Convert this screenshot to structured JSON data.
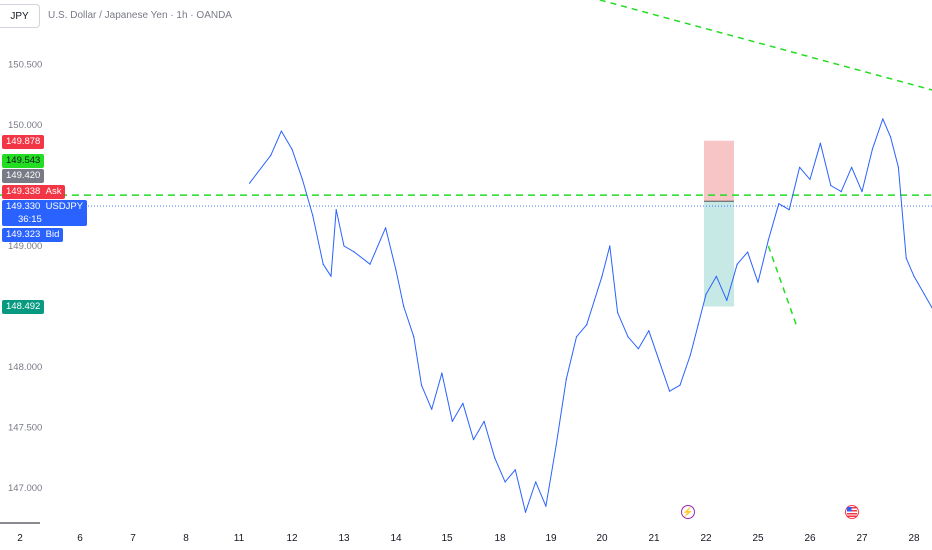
{
  "header": {
    "symbol": "JPY",
    "title": "U.S. Dollar / Japanese Yen · 1h · OANDA"
  },
  "colors": {
    "line": "#2962ff",
    "trend_green": "#22dd22",
    "loss_zone": "#f7c5c5",
    "profit_zone": "#c7e9e6",
    "ask_red": "#f23645",
    "bid_blue": "#2962ff"
  },
  "price_tags": {
    "t1": "149.878",
    "t2": "149.543",
    "t3": "149.420",
    "ask": "149.338",
    "ask_label": "Ask",
    "last": "149.330",
    "last_label": "USDJPY",
    "countdown": "36:15",
    "bid": "149.323",
    "bid_label": "Bid",
    "stop": "148.492"
  },
  "events": {
    "icon1": "lightning-icon",
    "icon2": "us-flag-icon"
  },
  "chart_data": {
    "type": "line",
    "title": "U.S. Dollar / Japanese Yen · 1h · OANDA",
    "y_ticks": [
      "150.500",
      "150.000",
      "149.000",
      "148.000",
      "147.500",
      "147.000"
    ],
    "x_ticks": [
      "2",
      "6",
      "7",
      "8",
      "11",
      "12",
      "13",
      "14",
      "15",
      "18",
      "19",
      "20",
      "21",
      "22",
      "25",
      "26",
      "27",
      "28"
    ],
    "ylim": [
      146.75,
      150.75
    ],
    "series": [
      {
        "name": "USDJPY",
        "points": [
          [
            4.2,
            149.52
          ],
          [
            4.6,
            149.75
          ],
          [
            4.8,
            149.95
          ],
          [
            5.0,
            149.8
          ],
          [
            5.2,
            149.55
          ],
          [
            5.4,
            149.25
          ],
          [
            5.6,
            148.85
          ],
          [
            5.75,
            148.75
          ],
          [
            5.85,
            149.3
          ],
          [
            6.0,
            149.0
          ],
          [
            6.2,
            148.95
          ],
          [
            6.5,
            148.85
          ],
          [
            6.8,
            149.15
          ],
          [
            7.0,
            148.8
          ],
          [
            7.15,
            148.5
          ],
          [
            7.35,
            148.25
          ],
          [
            7.5,
            147.85
          ],
          [
            7.7,
            147.65
          ],
          [
            7.9,
            147.95
          ],
          [
            8.1,
            147.55
          ],
          [
            8.3,
            147.7
          ],
          [
            8.5,
            147.4
          ],
          [
            8.7,
            147.55
          ],
          [
            8.9,
            147.25
          ],
          [
            9.1,
            147.05
          ],
          [
            9.3,
            147.15
          ],
          [
            9.5,
            146.8
          ],
          [
            9.7,
            147.05
          ],
          [
            9.9,
            146.85
          ],
          [
            10.1,
            147.35
          ],
          [
            10.3,
            147.9
          ],
          [
            10.5,
            148.25
          ],
          [
            10.7,
            148.35
          ],
          [
            10.85,
            148.55
          ],
          [
            11.0,
            148.75
          ],
          [
            11.15,
            149.0
          ],
          [
            11.3,
            148.45
          ],
          [
            11.5,
            148.25
          ],
          [
            11.7,
            148.15
          ],
          [
            11.9,
            148.3
          ],
          [
            12.1,
            148.05
          ],
          [
            12.3,
            147.8
          ],
          [
            12.5,
            147.85
          ],
          [
            12.7,
            148.1
          ],
          [
            12.85,
            148.35
          ],
          [
            13.0,
            148.6
          ],
          [
            13.2,
            148.75
          ],
          [
            13.4,
            148.55
          ],
          [
            13.6,
            148.85
          ],
          [
            13.8,
            148.95
          ],
          [
            14.0,
            148.7
          ],
          [
            14.2,
            149.05
          ],
          [
            14.4,
            149.35
          ],
          [
            14.6,
            149.3
          ],
          [
            14.8,
            149.65
          ],
          [
            15.0,
            149.55
          ],
          [
            15.2,
            149.85
          ],
          [
            15.4,
            149.5
          ],
          [
            15.6,
            149.45
          ],
          [
            15.8,
            149.65
          ],
          [
            16.0,
            149.45
          ],
          [
            16.2,
            149.8
          ],
          [
            16.4,
            150.05
          ],
          [
            16.55,
            149.9
          ],
          [
            16.7,
            149.65
          ],
          [
            16.85,
            148.9
          ],
          [
            17.0,
            148.75
          ],
          [
            17.2,
            148.6
          ],
          [
            17.4,
            148.45
          ],
          [
            17.6,
            148.55
          ],
          [
            17.8,
            148.6
          ],
          [
            18.0,
            148.8
          ],
          [
            18.2,
            148.95
          ],
          [
            18.4,
            148.75
          ],
          [
            18.55,
            149.1
          ],
          [
            18.65,
            149.4
          ],
          [
            18.72,
            149.3
          ]
        ]
      }
    ],
    "horizontal_line": 149.42,
    "trendlines": [
      {
        "from": [
          9.5,
          151.2
        ],
        "to": [
          31.0,
          148.7
        ]
      },
      {
        "from": [
          14.2,
          149.0
        ],
        "to": [
          14.75,
          148.33
        ]
      }
    ],
    "position": {
      "entry": 149.37,
      "stop": 149.87,
      "target": 148.5
    }
  }
}
